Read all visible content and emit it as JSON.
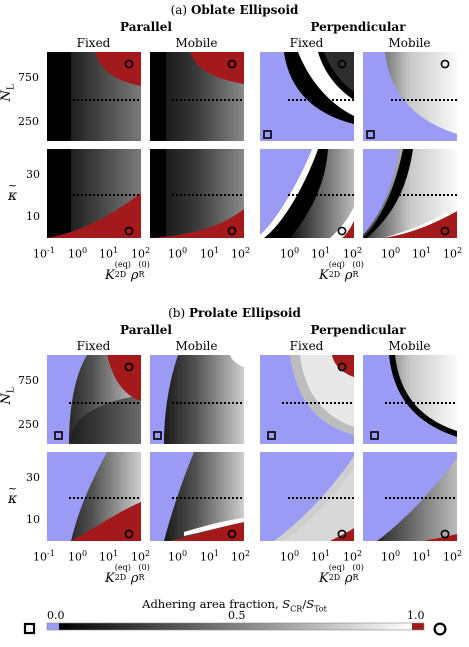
{
  "section_a": {
    "label": "(a)",
    "title": "Oblate Ellipsoid"
  },
  "section_b": {
    "label": "(b)",
    "title": "Prolate Ellipsoid"
  },
  "groups": {
    "parallel": "Parallel",
    "perpendicular": "Perpendicular"
  },
  "columns": {
    "fixed": "Fixed",
    "mobile": "Mobile"
  },
  "y_labels": {
    "top_main": "N",
    "top_sub": "L",
    "bottom_main": "κ",
    "bottom_accent": "~"
  },
  "x_label": {
    "main": "K",
    "sub": "2D",
    "sup": "(eq)",
    "rho": "ρ",
    "rho_sub": "R",
    "rho_sup": "(0)"
  },
  "y_ticks_top": [
    "750",
    "250"
  ],
  "y_ticks_bottom": [
    "30",
    "10"
  ],
  "x_ticks": [
    {
      "base": "10",
      "exp": "-1"
    },
    {
      "base": "10",
      "exp": "0"
    },
    {
      "base": "10",
      "exp": "1"
    },
    {
      "base": "10",
      "exp": "2"
    }
  ],
  "colorbar": {
    "title": "Adhering area fraction, ",
    "ratio_num": "S",
    "ratio_num_sub": "CR",
    "ratio_den": "S",
    "ratio_den_sub": "Tot",
    "min_label": "0.0",
    "mid_label": "0.5",
    "max_label": "1.0",
    "low_color": "#9b9bf5",
    "high_color": "#a3191c",
    "low_marker": "square",
    "high_marker": "circle"
  },
  "colors": {
    "blue": "#9b9bf5",
    "red": "#a3191c"
  }
}
